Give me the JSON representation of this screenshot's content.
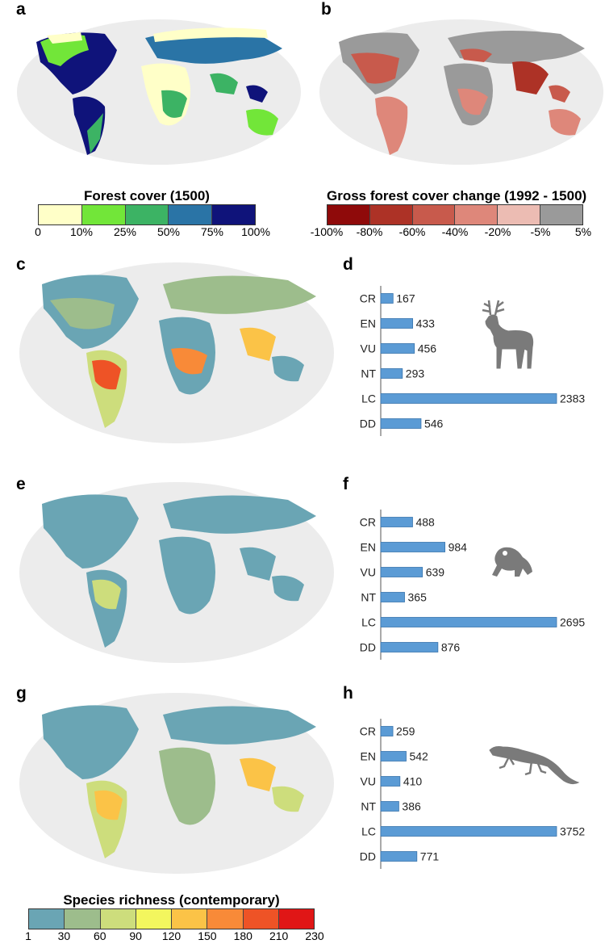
{
  "panels": {
    "a": "a",
    "b": "b",
    "c": "c",
    "d": "d",
    "e": "e",
    "f": "f",
    "g": "g",
    "h": "h"
  },
  "legends": {
    "forest_cover": {
      "title": "Forest cover (1500)",
      "colors": [
        "#ffffc8",
        "#72e639",
        "#3cb364",
        "#2a74a6",
        "#0f137a"
      ],
      "ticks": [
        "0",
        "10%",
        "25%",
        "50%",
        "75%",
        "100%"
      ]
    },
    "forest_change": {
      "title": "Gross forest cover change (1992 - 1500)",
      "colors": [
        "#8f0a0a",
        "#ad3226",
        "#c85a4c",
        "#de877a",
        "#ecbcb3",
        "#9a9a9a"
      ],
      "ticks": [
        "-100%",
        "-80%",
        "-60%",
        "-40%",
        "-20%",
        "-5%",
        "5%"
      ]
    },
    "species_richness": {
      "title": "Species richness (contemporary)",
      "colors": [
        "#6aa5b4",
        "#9dbd8c",
        "#cddd7c",
        "#f3f65e",
        "#fbc347",
        "#f88a38",
        "#ee5326",
        "#e01616"
      ],
      "ticks": [
        "1",
        "30",
        "60",
        "90",
        "120",
        "150",
        "180",
        "210",
        "230"
      ]
    }
  },
  "chart_data": [
    {
      "type": "bar",
      "panel": "d",
      "categories": [
        "CR",
        "EN",
        "VU",
        "NT",
        "LC",
        "DD"
      ],
      "values": [
        167,
        433,
        456,
        293,
        2383,
        546
      ],
      "xlim": [
        0,
        2383
      ],
      "bar_color": "#5b9bd5",
      "icon": "deer-icon"
    },
    {
      "type": "bar",
      "panel": "f",
      "categories": [
        "CR",
        "EN",
        "VU",
        "NT",
        "LC",
        "DD"
      ],
      "values": [
        488,
        984,
        639,
        365,
        2695,
        876
      ],
      "xlim": [
        0,
        2695
      ],
      "bar_color": "#5b9bd5",
      "icon": "frog-icon"
    },
    {
      "type": "bar",
      "panel": "h",
      "categories": [
        "CR",
        "EN",
        "VU",
        "NT",
        "LC",
        "DD"
      ],
      "values": [
        259,
        542,
        410,
        386,
        3752,
        771
      ],
      "xlim": [
        0,
        3752
      ],
      "bar_color": "#5b9bd5",
      "icon": "lizard-icon"
    }
  ]
}
